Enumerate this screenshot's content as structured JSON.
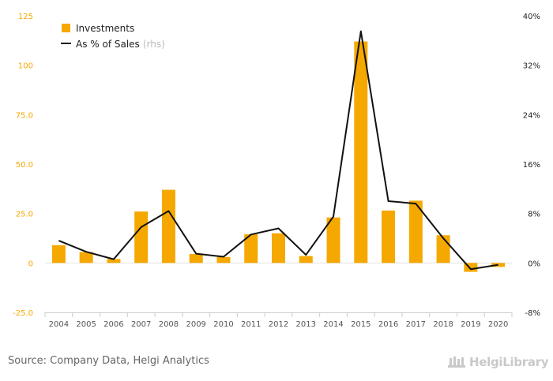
{
  "chart_data": {
    "type": "bar",
    "categories": [
      "2004",
      "2005",
      "2006",
      "2007",
      "2008",
      "2009",
      "2010",
      "2011",
      "2012",
      "2013",
      "2014",
      "2015",
      "2016",
      "2017",
      "2018",
      "2019",
      "2020"
    ],
    "series": [
      {
        "name": "Investments",
        "type": "bar",
        "axis": "left",
        "color": "#f5a800",
        "values": [
          9.0,
          5.5,
          2.0,
          26.0,
          37.0,
          4.5,
          3.0,
          14.5,
          15.0,
          3.5,
          23.0,
          112.0,
          26.5,
          31.5,
          14.0,
          -4.5,
          -2.0
        ]
      },
      {
        "name": "As % of Sales",
        "name_suffix": "(rhs)",
        "type": "line",
        "axis": "right",
        "color": "#111111",
        "values": [
          3.6,
          1.8,
          0.6,
          5.8,
          8.4,
          1.5,
          1.0,
          4.6,
          5.6,
          1.3,
          7.5,
          37.5,
          10.0,
          9.6,
          4.0,
          -1.0,
          -0.3
        ]
      }
    ],
    "yleft": {
      "ticks": [
        "125",
        "100",
        "75.0",
        "50.0",
        "25.0",
        "0",
        "-25.0"
      ],
      "min": -25,
      "max": 125
    },
    "yright": {
      "ticks": [
        "40%",
        "32%",
        "24%",
        "16%",
        "8%",
        "0%",
        "-8%"
      ],
      "min": -8,
      "max": 40
    },
    "title": "",
    "xlabel": "",
    "ylabel": "",
    "legend_position": "top-left",
    "grid": false
  },
  "footer": {
    "source": "Source: Company Data, Helgi Analytics",
    "brand": "HelgiLibrary"
  }
}
